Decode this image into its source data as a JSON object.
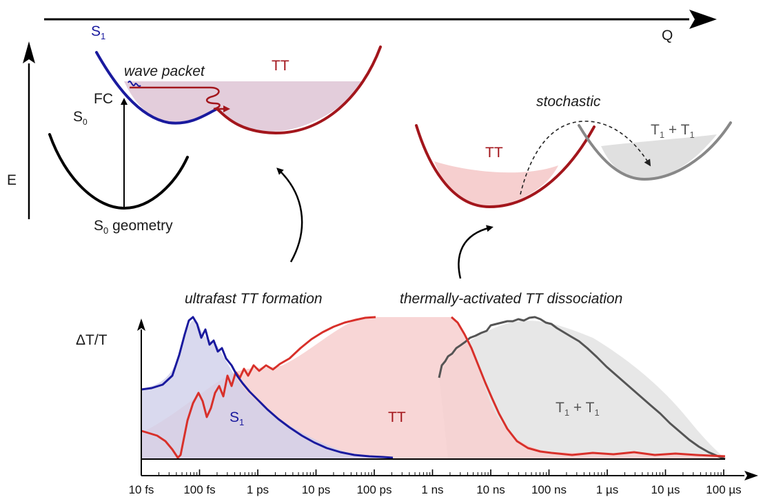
{
  "top_axes": {
    "q_label": "Q",
    "e_label": "E"
  },
  "surfaces_left": {
    "s1_label": "S",
    "s1_sub": "1",
    "tt_label": "TT",
    "wave_packet": "wave packet",
    "fc_label": "FC",
    "s0_label": "S",
    "s0_sub": "0",
    "geom_prefix": "S",
    "geom_sub": "0",
    "geom_suffix": " geometry"
  },
  "surfaces_right": {
    "stochastic": "stochastic",
    "tt_label": "TT",
    "t1t1_a": "T",
    "t1t1_sub1": "1",
    "t1t1_mid": " + T",
    "t1t1_sub2": "1"
  },
  "annotations": {
    "ultrafast": "ultrafast TT formation",
    "thermal": "thermally-activated TT dissociation"
  },
  "chart_data": {
    "type": "line",
    "ylabel": "ΔT/T",
    "xlabel": "",
    "x_scale": "log",
    "x_ticks": [
      "10 fs",
      "100 fs",
      "1 ps",
      "10 ps",
      "100 ps",
      "1 ns",
      "10 ns",
      "100 ns",
      "1 µs",
      "10 µs",
      "100 µs"
    ],
    "series": [
      {
        "name": "S1",
        "label": "S",
        "sub": "1",
        "color": "#1a1a9e"
      },
      {
        "name": "TT",
        "label": "TT",
        "color": "#d8302a"
      },
      {
        "name": "T1 + T1",
        "label": "T",
        "sub": "1",
        "mid": " + T",
        "sub2": "1",
        "color": "#555555"
      }
    ]
  },
  "colors": {
    "s1": "#1a1a9e",
    "tt": "#a3161c",
    "tt_trace": "#d8302a",
    "t1t1": "#888888",
    "t1t1_trace": "#555555",
    "s0": "#000000"
  }
}
